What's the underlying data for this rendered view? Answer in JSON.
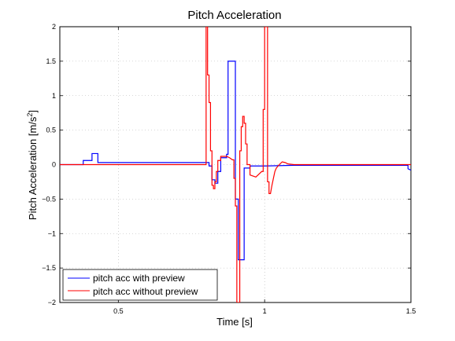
{
  "chart_data": {
    "type": "line",
    "title": "Pitch Acceleration",
    "xlabel": "Time [s]",
    "ylabel_base": "Pitch Acceleration [m/s",
    "ylabel_sup": "2",
    "ylabel_close": "]",
    "xlim": [
      0.3,
      1.5
    ],
    "ylim": [
      -2,
      2
    ],
    "grid": true,
    "legend_placement": "bottom-left",
    "x_ticks": [
      0.5,
      1,
      1.5
    ],
    "x_tick_labels": [
      "0.5",
      "1",
      "1.5"
    ],
    "y_ticks": [
      2,
      1.5,
      1,
      0.5,
      0,
      -0.5,
      -1,
      -1.5,
      -2
    ],
    "y_tick_labels": [
      "2",
      "1.5",
      "1",
      "0.5",
      "0",
      "−0.5",
      "−1",
      "−1.5",
      "−2"
    ],
    "series": [
      {
        "name": "pitch acc with preview",
        "color": "#0000ff",
        "points": [
          [
            0.3,
            0
          ],
          [
            0.38,
            0
          ],
          [
            0.38,
            0.06
          ],
          [
            0.41,
            0.06
          ],
          [
            0.41,
            0.16
          ],
          [
            0.43,
            0.16
          ],
          [
            0.43,
            0.03
          ],
          [
            0.5,
            0.03
          ],
          [
            0.7,
            0.03
          ],
          [
            0.8,
            0.03
          ],
          [
            0.81,
            0.03
          ],
          [
            0.81,
            -0.02
          ],
          [
            0.82,
            -0.02
          ],
          [
            0.82,
            -0.22
          ],
          [
            0.83,
            -0.22
          ],
          [
            0.83,
            -0.27
          ],
          [
            0.84,
            -0.27
          ],
          [
            0.84,
            -0.1
          ],
          [
            0.85,
            -0.1
          ],
          [
            0.85,
            0.1
          ],
          [
            0.87,
            0.1
          ],
          [
            0.87,
            0.15
          ],
          [
            0.875,
            0.15
          ],
          [
            0.875,
            1.5
          ],
          [
            0.9,
            1.5
          ],
          [
            0.9,
            -0.5
          ],
          [
            0.91,
            -0.5
          ],
          [
            0.91,
            -1.38
          ],
          [
            0.93,
            -1.38
          ],
          [
            0.93,
            -0.05
          ],
          [
            0.95,
            -0.05
          ],
          [
            0.95,
            -0.02
          ],
          [
            1.0,
            -0.02
          ],
          [
            1.1,
            -0.01
          ],
          [
            1.3,
            -0.01
          ],
          [
            1.49,
            -0.01
          ],
          [
            1.49,
            -0.06
          ],
          [
            1.5,
            -0.08
          ]
        ]
      },
      {
        "name": "pitch acc without preview",
        "color": "#ff0000",
        "points": [
          [
            0.3,
            0
          ],
          [
            0.7,
            0
          ],
          [
            0.8,
            0
          ],
          [
            0.8,
            2.0
          ],
          [
            0.805,
            2.0
          ],
          [
            0.805,
            1.3
          ],
          [
            0.81,
            1.3
          ],
          [
            0.81,
            0.9
          ],
          [
            0.815,
            0.9
          ],
          [
            0.815,
            0.2
          ],
          [
            0.82,
            0.2
          ],
          [
            0.82,
            -0.3
          ],
          [
            0.825,
            -0.3
          ],
          [
            0.825,
            -0.35
          ],
          [
            0.83,
            -0.35
          ],
          [
            0.83,
            -0.25
          ],
          [
            0.835,
            -0.25
          ],
          [
            0.835,
            -0.1
          ],
          [
            0.84,
            -0.1
          ],
          [
            0.84,
            0.06
          ],
          [
            0.85,
            0.06
          ],
          [
            0.85,
            0.12
          ],
          [
            0.87,
            0.12
          ],
          [
            0.88,
            0.1
          ],
          [
            0.89,
            0.07
          ],
          [
            0.895,
            0.07
          ],
          [
            0.895,
            -0.2
          ],
          [
            0.9,
            -0.2
          ],
          [
            0.9,
            -0.6
          ],
          [
            0.905,
            -0.6
          ],
          [
            0.905,
            -2.0
          ],
          [
            0.915,
            -2.0
          ],
          [
            0.915,
            0.2
          ],
          [
            0.92,
            0.2
          ],
          [
            0.92,
            0.55
          ],
          [
            0.925,
            0.55
          ],
          [
            0.925,
            0.7
          ],
          [
            0.93,
            0.7
          ],
          [
            0.93,
            0.6
          ],
          [
            0.935,
            0.6
          ],
          [
            0.935,
            0.3
          ],
          [
            0.94,
            0.3
          ],
          [
            0.94,
            0.0
          ],
          [
            0.95,
            0.0
          ],
          [
            0.95,
            -0.15
          ],
          [
            0.97,
            -0.18
          ],
          [
            0.98,
            -0.14
          ],
          [
            0.99,
            -0.1
          ],
          [
            0.995,
            -0.1
          ],
          [
            0.995,
            0.8
          ],
          [
            1.0,
            0.8
          ],
          [
            1.0,
            2.0
          ],
          [
            1.01,
            2.0
          ],
          [
            1.01,
            -0.25
          ],
          [
            1.015,
            -0.25
          ],
          [
            1.015,
            -0.42
          ],
          [
            1.02,
            -0.42
          ],
          [
            1.025,
            -0.3
          ],
          [
            1.03,
            -0.2
          ],
          [
            1.035,
            -0.1
          ],
          [
            1.04,
            -0.05
          ],
          [
            1.05,
            0.0
          ],
          [
            1.06,
            0.04
          ],
          [
            1.07,
            0.03
          ],
          [
            1.08,
            0.01
          ],
          [
            1.1,
            0.0
          ],
          [
            1.5,
            0.0
          ]
        ]
      }
    ]
  }
}
